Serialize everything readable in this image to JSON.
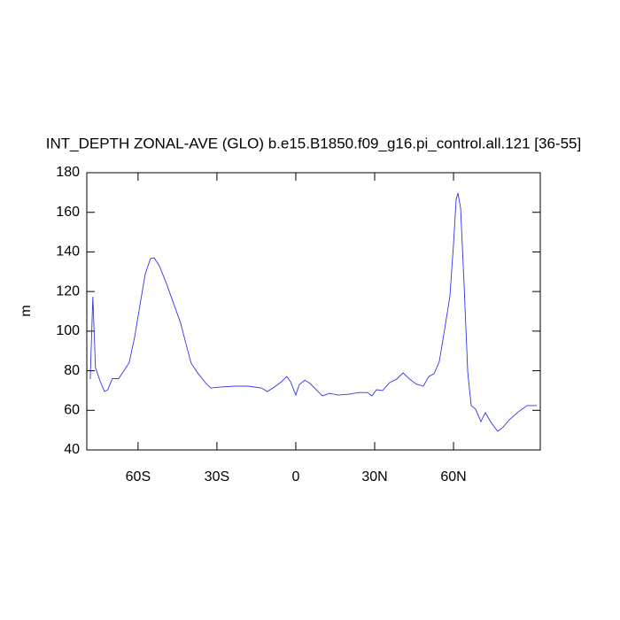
{
  "chart_data": {
    "type": "line",
    "title": "INT_DEPTH ZONAL-AVE (GLO) b.e15.B1850.f09_g16.pi_control.all.121 [36-55]",
    "y_label": "m",
    "x": [
      -78.2,
      -77.2,
      -76.2,
      -74.5,
      -72.8,
      -71.5,
      -69.8,
      -67.4,
      -65.4,
      -63.4,
      -61.3,
      -59.3,
      -57.3,
      -55.3,
      -53.9,
      -51.9,
      -49.2,
      -46.5,
      -43.8,
      -41.8,
      -39.8,
      -37.1,
      -34.4,
      -32.4,
      -28.3,
      -23.3,
      -18.2,
      -13.1,
      -10.8,
      -8.1,
      -5.4,
      -3.4,
      -2.0,
      0,
      1.3,
      3.4,
      5.4,
      8.1,
      10.1,
      12.8,
      16.2,
      20.6,
      23.9,
      27.3,
      29,
      30.7,
      33,
      35.7,
      38.4,
      40.8,
      43.1,
      45.8,
      48.5,
      50.6,
      52.6,
      54.6,
      56.6,
      58.6,
      60,
      61,
      61.7,
      62.7,
      64,
      65.4,
      66.7,
      68.4,
      70.4,
      72.1,
      74.5,
      76.8,
      78.9,
      81.2,
      84.6,
      88,
      91.7
    ],
    "series": [
      {
        "color": "#3333ee",
        "values": [
          75.8,
          117.4,
          81.6,
          75,
          69.5,
          70.4,
          76,
          76,
          80,
          84,
          97,
          113,
          128.6,
          136.6,
          137,
          133,
          124,
          114,
          104,
          93.7,
          83.8,
          78.5,
          74,
          71.3,
          71.8,
          72.2,
          72.2,
          71.3,
          69.5,
          71.8,
          74.5,
          77.1,
          74.5,
          67.7,
          73,
          75.2,
          73.6,
          70,
          67.3,
          68.6,
          67.7,
          68.2,
          69,
          69,
          67.3,
          70.4,
          70,
          74,
          75.8,
          78.9,
          76,
          73.3,
          72.2,
          77.1,
          78.5,
          84.7,
          100.8,
          117.4,
          144,
          166.6,
          169.7,
          162,
          124,
          79.4,
          62.4,
          60.6,
          54.3,
          58.8,
          53.4,
          49.4,
          51.6,
          55.2,
          59.2,
          62.4,
          62.4
        ]
      }
    ],
    "xlim": [
      -79.5,
      93
    ],
    "xticks": [
      {
        "value": -60,
        "label": "60S"
      },
      {
        "value": -30,
        "label": "30S"
      },
      0,
      {
        "value": 30,
        "label": "30N"
      },
      {
        "value": 60,
        "label": "60N"
      }
    ],
    "ylim": [
      40,
      180
    ],
    "yticks": [
      40,
      60,
      80,
      100,
      120,
      140,
      160,
      180
    ]
  }
}
